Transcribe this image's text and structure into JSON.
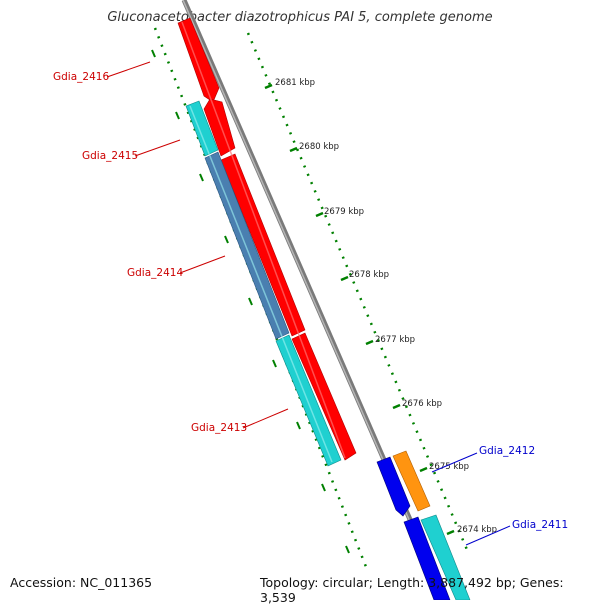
{
  "title": "Gluconacetobacter diazotrophicus PAI 5, complete genome",
  "footer": {
    "accession": "Accession: NC_011365",
    "summary": "Topology: circular; Length: 3,887,492 bp; Genes: 3,539"
  },
  "colors": {
    "backbone": "#8c8c8c",
    "tick": "#008000",
    "label_minus": "#cc0000",
    "label_plus": "#0000cc",
    "red_gene": "#ff0000",
    "cyan_gene": "#1fd0d0",
    "steel_gene": "#4a7fb0",
    "blue_gene": "#0000ee",
    "orange_gene": "#ff9410"
  },
  "scale_labels": [
    "2681 kbp",
    "2680 kbp",
    "2679 kbp",
    "2678 kbp",
    "2677 kbp",
    "2676 kbp",
    "2675 kbp",
    "2674 kbp"
  ],
  "genes": [
    {
      "id": "gdia-2416",
      "label": "Gdia_2416",
      "strand": "minus"
    },
    {
      "id": "gdia-2415",
      "label": "Gdia_2415",
      "strand": "minus"
    },
    {
      "id": "gdia-2414",
      "label": "Gdia_2414",
      "strand": "minus"
    },
    {
      "id": "gdia-2413",
      "label": "Gdia_2413",
      "strand": "minus"
    },
    {
      "id": "gdia-2412",
      "label": "Gdia_2412",
      "strand": "plus"
    },
    {
      "id": "gdia-2411",
      "label": "Gdia_2411",
      "strand": "plus"
    }
  ]
}
